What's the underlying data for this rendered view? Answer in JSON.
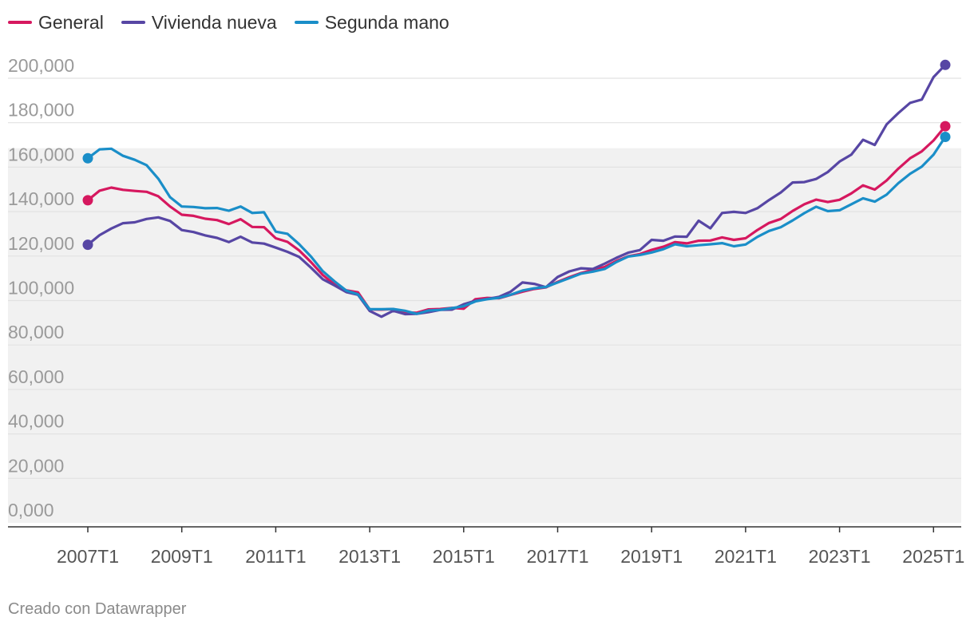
{
  "chart_data": {
    "type": "line",
    "title": "",
    "xlabel": "",
    "ylabel": "",
    "ylim": [
      0,
      205000
    ],
    "yticks": [
      0,
      20000,
      40000,
      60000,
      80000,
      100000,
      120000,
      140000,
      160000,
      180000,
      200000
    ],
    "ytick_labels": [
      "0,000",
      "20,000",
      "40,000",
      "60,000",
      "80,000",
      "100,000",
      "120,000",
      "140,000",
      "160,000",
      "180,000",
      "200,000"
    ],
    "xticks": [
      "2007T1",
      "2009T1",
      "2011T1",
      "2013T1",
      "2015T1",
      "2017T1",
      "2019T1",
      "2021T1",
      "2023T1",
      "2025T1"
    ],
    "shaded_band": [
      0,
      168500
    ],
    "x_start_year": 2007,
    "series": [
      {
        "name": "General",
        "color": "#d6185f",
        "values": [
          145100,
          149400,
          150800,
          149800,
          149300,
          148900,
          146900,
          142300,
          138600,
          138100,
          136800,
          136200,
          134400,
          136600,
          133100,
          133000,
          128000,
          126400,
          122500,
          117300,
          111500,
          107200,
          104600,
          103700,
          96000,
          95900,
          96200,
          94600,
          94500,
          96000,
          96200,
          96700,
          96300,
          100600,
          101200,
          101000,
          102500,
          104000,
          105200,
          105900,
          108400,
          110500,
          112400,
          113700,
          115100,
          117800,
          119900,
          120900,
          122800,
          124200,
          126300,
          125700,
          126900,
          127000,
          128400,
          127300,
          128000,
          131700,
          134900,
          136700,
          140300,
          143300,
          145400,
          144300,
          145300,
          148200,
          151800,
          149900,
          154000,
          159300,
          164000,
          167100,
          172000,
          178400
        ]
      },
      {
        "name": "Vivienda nueva",
        "color": "#5746a4",
        "values": [
          125100,
          129400,
          132400,
          134800,
          135200,
          136700,
          137400,
          135800,
          131700,
          130800,
          129300,
          128200,
          126300,
          128700,
          126100,
          125600,
          123800,
          121900,
          119600,
          114800,
          109600,
          106800,
          103800,
          102600,
          95300,
          92700,
          95400,
          93900,
          94000,
          94800,
          95800,
          95900,
          98300,
          99900,
          100700,
          101600,
          104000,
          108100,
          107500,
          106000,
          110600,
          113100,
          114500,
          114200,
          116600,
          119200,
          121500,
          122700,
          127300,
          126900,
          128800,
          128700,
          135900,
          132500,
          139400,
          139900,
          139400,
          141500,
          145200,
          148600,
          153100,
          153300,
          154700,
          157800,
          162500,
          165600,
          172300,
          170000,
          179200,
          184300,
          188900,
          190400,
          200500,
          206000
        ]
      },
      {
        "name": "Segunda mano",
        "color": "#1a8ec8",
        "values": [
          164000,
          168000,
          168300,
          165100,
          163300,
          160900,
          154800,
          146500,
          142300,
          142100,
          141500,
          141600,
          140400,
          142300,
          139400,
          139700,
          131000,
          130000,
          125300,
          119800,
          113200,
          108600,
          104500,
          102800,
          96100,
          96100,
          96200,
          95400,
          94000,
          95500,
          95800,
          96600,
          97400,
          99600,
          100600,
          101200,
          102600,
          104500,
          105500,
          106100,
          108100,
          110100,
          112100,
          113000,
          114200,
          117300,
          119800,
          120500,
          121600,
          123100,
          125300,
          124400,
          124900,
          125300,
          125800,
          124400,
          125200,
          128600,
          131300,
          133000,
          136000,
          139300,
          142200,
          140200,
          140600,
          143300,
          146000,
          144500,
          147600,
          152800,
          157000,
          160200,
          165600,
          173600
        ]
      }
    ]
  },
  "footer": "Creado con Datawrapper"
}
